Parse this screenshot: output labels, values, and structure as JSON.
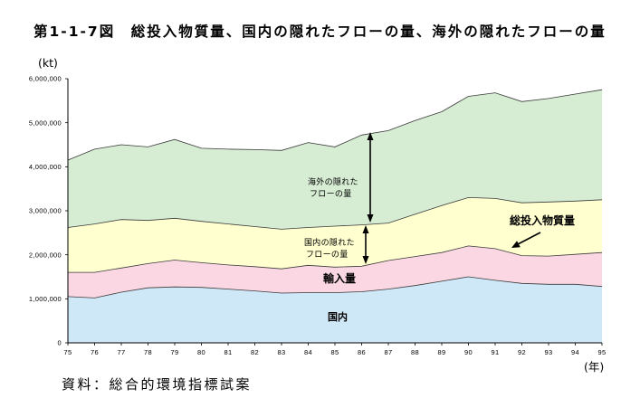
{
  "source": "資料：総合的環境指標試案",
  "chart_data": {
    "type": "area",
    "stacked": true,
    "title": "第1-1-7図　総投入物質量、国内の隠れたフローの量、海外の隠れたフローの量",
    "xlabel": "(年)",
    "ylabel": "(kt)",
    "categories": [
      "75",
      "76",
      "77",
      "78",
      "79",
      "80",
      "81",
      "82",
      "83",
      "84",
      "85",
      "86",
      "87",
      "88",
      "89",
      "90",
      "91",
      "92",
      "93",
      "94",
      "95"
    ],
    "ylim": [
      0,
      6000000
    ],
    "yticks": [
      0,
      1000000,
      2000000,
      3000000,
      4000000,
      5000000,
      6000000
    ],
    "y_tick_labels": [
      "0",
      "1,000,000",
      "2,000,000",
      "3,000,000",
      "4,000,000",
      "5,000,000",
      "6,000,000"
    ],
    "grid": false,
    "series": [
      {
        "label_lines": [
          "国内"
        ],
        "color": "#cfe8f7",
        "values": [
          1050000,
          1020000,
          1150000,
          1250000,
          1270000,
          1260000,
          1220000,
          1180000,
          1130000,
          1140000,
          1140000,
          1160000,
          1220000,
          1300000,
          1400000,
          1500000,
          1420000,
          1350000,
          1330000,
          1330000,
          1280000
        ]
      },
      {
        "label_lines": [
          "輸入量"
        ],
        "color": "#fbd7e3",
        "values": [
          550000,
          580000,
          550000,
          550000,
          610000,
          560000,
          550000,
          550000,
          550000,
          620000,
          580000,
          580000,
          650000,
          660000,
          650000,
          700000,
          720000,
          630000,
          640000,
          680000,
          770000
        ]
      },
      {
        "label_lines": [
          "国内の隠れた",
          "フローの量"
        ],
        "color": "#ffffcf",
        "values": [
          1020000,
          1100000,
          1100000,
          980000,
          950000,
          940000,
          930000,
          910000,
          900000,
          860000,
          930000,
          940000,
          850000,
          960000,
          1070000,
          1100000,
          1140000,
          1200000,
          1230000,
          1210000,
          1200000
        ]
      },
      {
        "label_lines": [
          "海外の隠れた",
          "フローの量"
        ],
        "color": "#d6edd3",
        "values": [
          1530000,
          1700000,
          1700000,
          1670000,
          1790000,
          1660000,
          1700000,
          1750000,
          1790000,
          1930000,
          1800000,
          2040000,
          2100000,
          2130000,
          2130000,
          2300000,
          2400000,
          2300000,
          2350000,
          2430000,
          2500000
        ]
      }
    ],
    "annotations": [
      {
        "text": "総投入物質量"
      }
    ]
  }
}
